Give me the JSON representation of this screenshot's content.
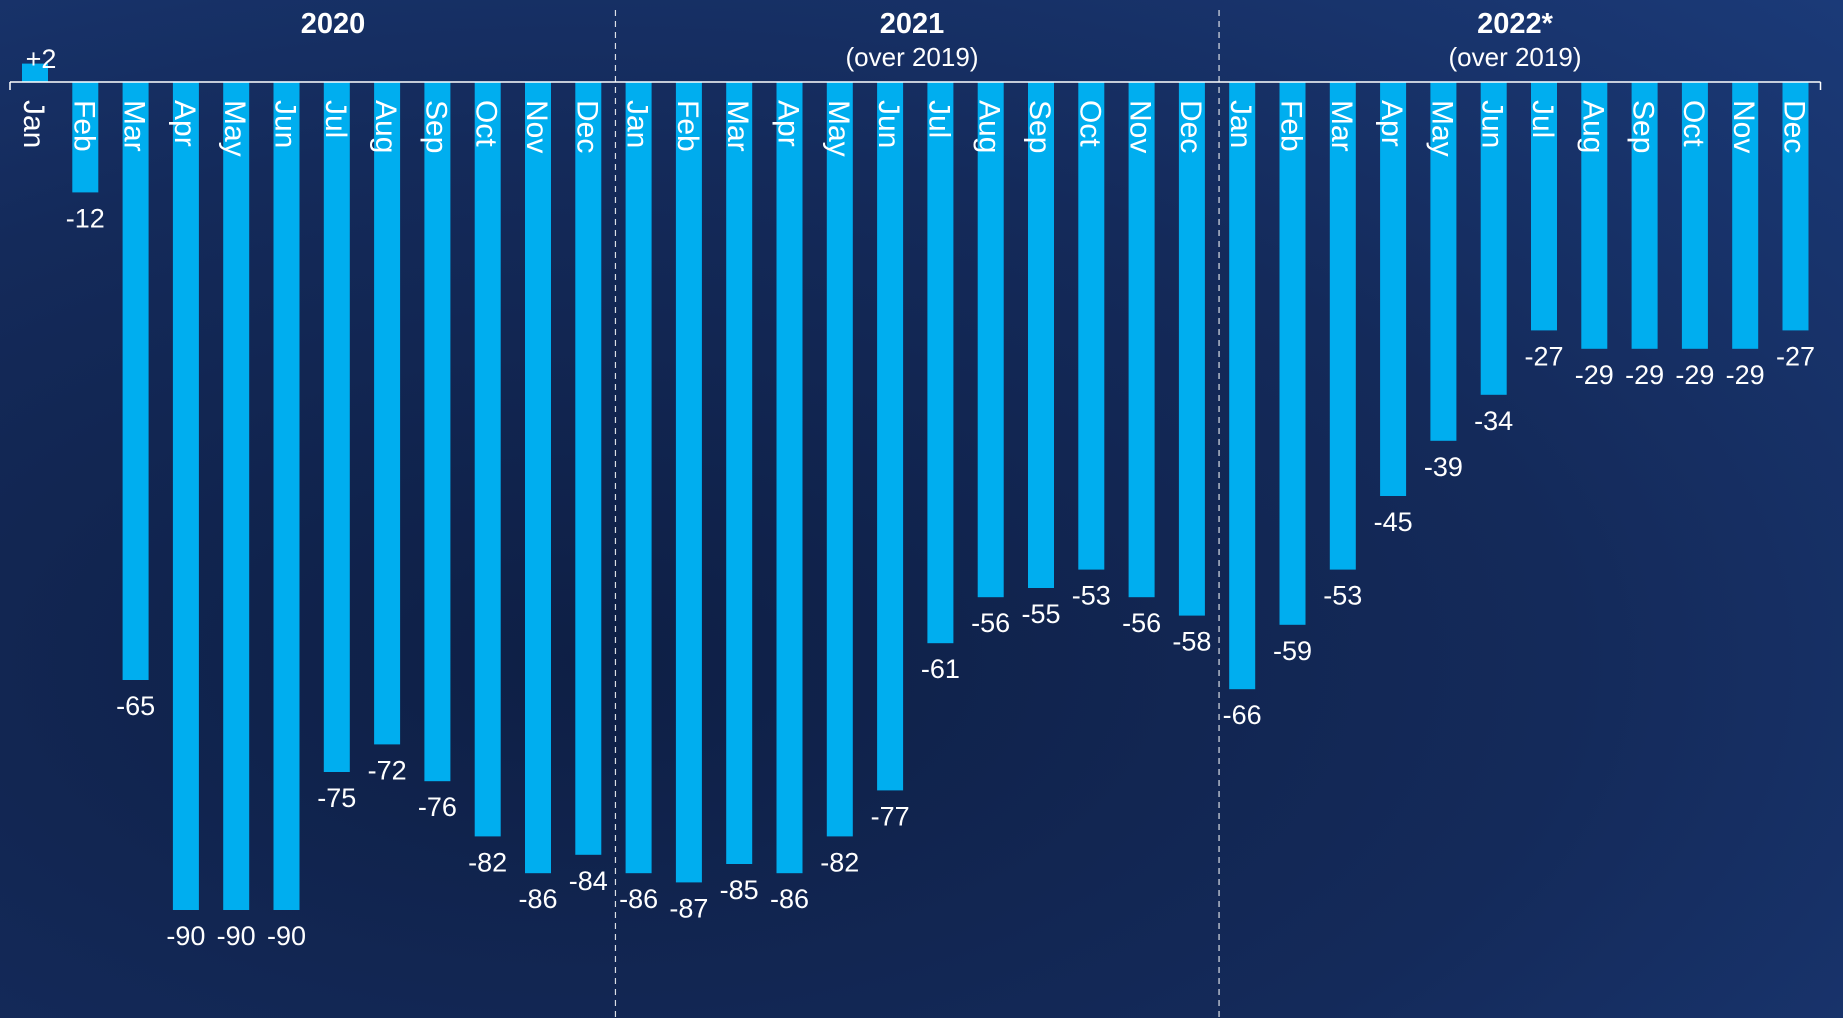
{
  "chart_data": {
    "type": "bar",
    "colors": {
      "bar": "#00aeef",
      "text": "#ffffff",
      "background": "#142a5a",
      "divider": "#ffffff"
    },
    "groups": [
      {
        "title": "2020",
        "subtitle": ""
      },
      {
        "title": "2021",
        "subtitle": "(over 2019)"
      },
      {
        "title": "2022*",
        "subtitle": "(over 2019)"
      }
    ],
    "categories": [
      "Jan",
      "Feb",
      "Mar",
      "Apr",
      "May",
      "Jun",
      "Jul",
      "Aug",
      "Sep",
      "Oct",
      "Nov",
      "Dec"
    ],
    "series": [
      {
        "values": [
          2,
          -12,
          -65,
          -90,
          -90,
          -90,
          -75,
          -72,
          -76,
          -82,
          -86,
          -84
        ]
      },
      {
        "values": [
          -86,
          -87,
          -85,
          -86,
          -82,
          -77,
          -61,
          -56,
          -55,
          -53,
          -56,
          -58
        ]
      },
      {
        "values": [
          -66,
          -59,
          -53,
          -45,
          -39,
          -34,
          -27,
          -29,
          -29,
          -29,
          -29,
          -27
        ]
      }
    ],
    "value_labels": [
      [
        "+2",
        "-12",
        "-65",
        "-90",
        "-90",
        "-90",
        "-75",
        "-72",
        "-76",
        "-82",
        "-86",
        "-84"
      ],
      [
        "-86",
        "-87",
        "-85",
        "-86",
        "-82",
        "-77",
        "-61",
        "-56",
        "-55",
        "-53",
        "-56",
        "-58"
      ],
      [
        "-66",
        "-59",
        "-53",
        "-45",
        "-39",
        "-34",
        "-27",
        "-29",
        "-29",
        "-29",
        "-29",
        "-27"
      ]
    ],
    "ylim": [
      -90,
      2
    ],
    "grid": false,
    "legend": "none"
  }
}
